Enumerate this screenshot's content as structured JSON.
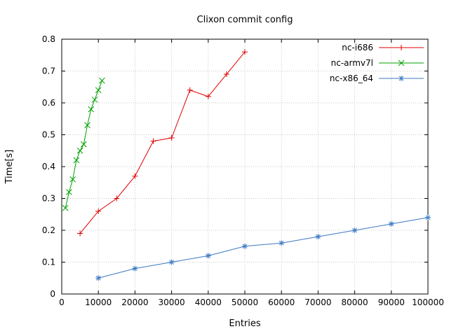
{
  "title": "Clixon commit config",
  "chart_data": {
    "type": "line",
    "title": "Clixon commit config",
    "xlabel": "Entries",
    "ylabel": "Time[s]",
    "xlim": [
      0,
      100000
    ],
    "ylim": [
      0,
      0.8
    ],
    "xticks": [
      0,
      10000,
      20000,
      30000,
      40000,
      50000,
      60000,
      70000,
      80000,
      90000,
      100000
    ],
    "yticks": [
      0,
      0.1,
      0.2,
      0.3,
      0.4,
      0.5,
      0.6,
      0.7,
      0.8
    ],
    "grid": true,
    "grid_style": "dotted",
    "legend_position": "top-right-inside",
    "colors": {
      "grid": "#c8c8c8",
      "border": "#000000",
      "text": "#000000"
    },
    "series": [
      {
        "name": "nc-i686",
        "color": "#e00000",
        "marker": "plus",
        "points": [
          [
            5000,
            0.19
          ],
          [
            10000,
            0.26
          ],
          [
            15000,
            0.3
          ],
          [
            20000,
            0.37
          ],
          [
            25000,
            0.48
          ],
          [
            30000,
            0.49
          ],
          [
            35000,
            0.64
          ],
          [
            40000,
            0.62
          ],
          [
            45000,
            0.69
          ],
          [
            50000,
            0.76
          ]
        ]
      },
      {
        "name": "nc-armv7l",
        "color": "#00a000",
        "marker": "cross",
        "points": [
          [
            1000,
            0.27
          ],
          [
            2000,
            0.32
          ],
          [
            3000,
            0.36
          ],
          [
            4000,
            0.42
          ],
          [
            5000,
            0.45
          ],
          [
            6000,
            0.47
          ],
          [
            7000,
            0.53
          ],
          [
            8000,
            0.58
          ],
          [
            9000,
            0.61
          ],
          [
            10000,
            0.64
          ],
          [
            11000,
            0.67
          ]
        ]
      },
      {
        "name": "nc-x86_64",
        "color": "#3b78c3",
        "marker": "star",
        "points": [
          [
            10000,
            0.05
          ],
          [
            20000,
            0.08
          ],
          [
            30000,
            0.1
          ],
          [
            40000,
            0.12
          ],
          [
            50000,
            0.15
          ],
          [
            60000,
            0.16
          ],
          [
            70000,
            0.18
          ],
          [
            80000,
            0.2
          ],
          [
            90000,
            0.22
          ],
          [
            100000,
            0.24
          ]
        ]
      }
    ]
  }
}
